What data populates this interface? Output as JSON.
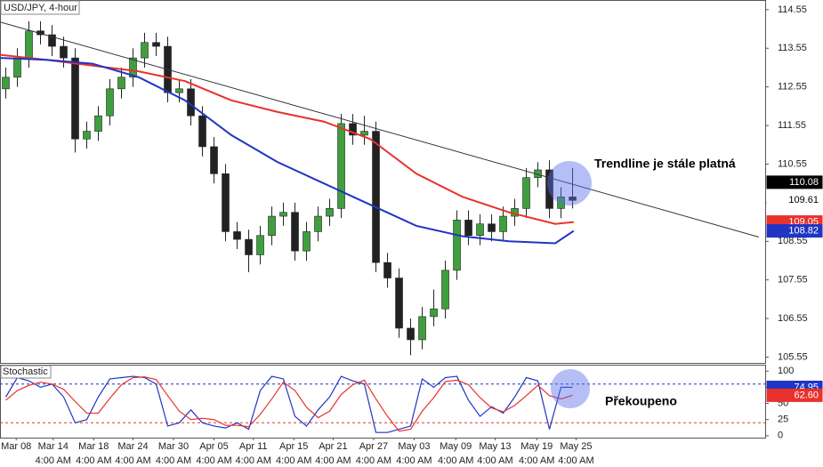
{
  "chart_data": [
    {
      "type": "candlestick",
      "title": "USD/JPY, 4-hour",
      "x": [
        0.5,
        1.5,
        2.5,
        3.5,
        4.5,
        5.5,
        6.5,
        7.5,
        8.5,
        9.5,
        10.5,
        11.5,
        12.5,
        13.5,
        14.5,
        15.5,
        16.5,
        17.5,
        18.5,
        19.5,
        20.5,
        21.5,
        22.5,
        23.5,
        24.5,
        25.5,
        26.5,
        27.5,
        28.5,
        29.5,
        30.5,
        31.5,
        32.5,
        33.5,
        34.5,
        35.5,
        36.5,
        37.5,
        38.5,
        39.5,
        40.5,
        41.5,
        42.5,
        43.5,
        44.5,
        45.5,
        46.5,
        47.5,
        48.5,
        49.5
      ],
      "open": [
        112.5,
        112.8,
        113.3,
        114.0,
        113.9,
        113.6,
        113.3,
        111.2,
        111.4,
        111.8,
        112.5,
        112.8,
        113.3,
        113.7,
        113.6,
        112.4,
        112.5,
        111.8,
        111.0,
        110.3,
        108.8,
        108.6,
        108.2,
        108.7,
        109.2,
        109.3,
        108.3,
        108.8,
        109.2,
        109.4,
        111.6,
        111.3,
        111.4,
        108.0,
        107.6,
        106.3,
        106.0,
        106.6,
        106.8,
        107.8,
        109.1,
        108.7,
        109.0,
        108.8,
        109.2,
        109.4,
        110.2,
        110.4,
        109.4,
        109.7
      ],
      "high": [
        113.05,
        113.55,
        114.25,
        114.25,
        114.15,
        113.85,
        113.55,
        111.65,
        112.05,
        112.75,
        113.05,
        113.55,
        113.95,
        113.95,
        113.85,
        112.75,
        112.75,
        112.05,
        111.25,
        110.55,
        109.05,
        108.85,
        108.95,
        109.45,
        109.55,
        109.55,
        109.05,
        109.45,
        109.65,
        111.85,
        111.85,
        111.8,
        111.65,
        108.25,
        107.85,
        106.55,
        106.85,
        107.3,
        108.05,
        109.35,
        109.35,
        109.25,
        109.25,
        109.45,
        109.65,
        110.45,
        110.6,
        110.65,
        109.95,
        110.45
      ],
      "low": [
        112.25,
        112.55,
        113.05,
        113.65,
        113.35,
        113.05,
        110.85,
        110.95,
        111.15,
        111.55,
        112.25,
        112.55,
        113.05,
        113.35,
        112.15,
        112.15,
        111.55,
        110.75,
        110.05,
        108.55,
        108.35,
        107.75,
        107.95,
        108.45,
        108.95,
        108.05,
        108.05,
        108.55,
        108.95,
        109.15,
        111.05,
        111.05,
        107.75,
        107.35,
        106.05,
        105.6,
        105.75,
        106.35,
        106.55,
        107.55,
        108.45,
        108.45,
        108.55,
        108.55,
        108.95,
        109.15,
        109.95,
        109.15,
        109.15,
        109.4
      ],
      "close": [
        112.8,
        113.3,
        114.0,
        113.9,
        113.6,
        113.3,
        111.2,
        111.4,
        111.8,
        112.5,
        112.8,
        113.3,
        113.7,
        113.6,
        112.4,
        112.5,
        111.8,
        111.0,
        110.3,
        108.8,
        108.6,
        108.2,
        108.7,
        109.2,
        109.3,
        108.3,
        108.8,
        109.2,
        109.4,
        111.6,
        111.3,
        111.4,
        108.0,
        107.6,
        106.3,
        106.0,
        106.6,
        106.8,
        107.8,
        109.1,
        108.7,
        109.0,
        108.8,
        109.2,
        109.4,
        110.2,
        110.4,
        109.4,
        109.7,
        109.61
      ],
      "up_color": "#3f9f3f",
      "down_color": "#222222",
      "series": [
        {
          "color": "#e8322b",
          "x": [
            0,
            4,
            8,
            12,
            16,
            20,
            24,
            28,
            32,
            36,
            40,
            44,
            48,
            49.6
          ],
          "values": [
            113.38,
            113.25,
            113.1,
            112.95,
            112.7,
            112.2,
            111.9,
            111.65,
            111.2,
            110.3,
            109.7,
            109.3,
            109.0,
            109.05
          ]
        },
        {
          "color": "#1f35c4",
          "x": [
            0,
            4,
            8,
            12,
            16,
            20,
            24,
            28,
            32,
            36,
            40,
            44,
            48,
            49.6
          ],
          "values": [
            113.3,
            113.25,
            113.15,
            112.8,
            112.2,
            111.3,
            110.6,
            110.05,
            109.5,
            108.95,
            108.68,
            108.55,
            108.5,
            108.82
          ]
        }
      ],
      "trendline": {
        "color": "#333333",
        "x": [
          0,
          65.6
        ],
        "values": [
          114.23,
          108.66
        ]
      },
      "annotation": "Trendline je stále platná",
      "price_labels": [
        {
          "value": 110.08,
          "color": "#000000"
        },
        {
          "value": 109.61,
          "color": "#ffffff"
        },
        {
          "value": 109.05,
          "color": "#e8322b"
        },
        {
          "value": 108.82,
          "color": "#1f35c4"
        }
      ],
      "xlim": [
        0,
        66.15
      ],
      "ylim": [
        105.4,
        114.8
      ],
      "yticks": [
        114.55,
        113.55,
        112.55,
        111.55,
        110.55,
        109.55,
        108.55,
        107.55,
        106.55,
        105.55
      ]
    },
    {
      "type": "line",
      "title": "Stochastic",
      "x": [
        0.5,
        1.5,
        2.5,
        3.5,
        4.5,
        5.5,
        6.5,
        7.5,
        8.5,
        9.5,
        10.5,
        11.5,
        12.5,
        13.5,
        14.5,
        15.5,
        16.5,
        17.5,
        18.5,
        19.5,
        20.5,
        21.5,
        22.5,
        23.5,
        24.5,
        25.5,
        26.5,
        27.5,
        28.5,
        29.5,
        30.5,
        31.5,
        32.5,
        33.5,
        34.5,
        35.5,
        36.5,
        37.5,
        38.5,
        39.5,
        40.5,
        41.5,
        42.5,
        43.5,
        44.5,
        45.5,
        46.5,
        47.5,
        48.5,
        49.5
      ],
      "series": [
        {
          "color": "#1f35c4",
          "values": [
            60,
            90,
            85,
            75,
            80,
            60,
            20,
            25,
            60,
            88,
            90,
            92,
            90,
            80,
            15,
            20,
            40,
            20,
            15,
            12,
            20,
            10,
            70,
            92,
            88,
            30,
            15,
            40,
            60,
            92,
            85,
            80,
            5,
            5,
            10,
            15,
            88,
            75,
            90,
            92,
            55,
            30,
            45,
            35,
            60,
            90,
            85,
            10,
            75,
            74.95
          ]
        },
        {
          "color": "#e8322b",
          "values": [
            55,
            70,
            78,
            83,
            80,
            72,
            53,
            35,
            35,
            58,
            79,
            90,
            91,
            87,
            62,
            38,
            25,
            27,
            25,
            16,
            16,
            14,
            33,
            57,
            83,
            70,
            44,
            28,
            38,
            64,
            79,
            86,
            57,
            30,
            7,
            10,
            38,
            59,
            84,
            86,
            79,
            59,
            43,
            37,
            47,
            62,
            78,
            62,
            57,
            62.6
          ]
        }
      ],
      "levels": [
        {
          "value": 80,
          "color": "#1f35c4"
        },
        {
          "value": 20,
          "color": "#e8322b"
        }
      ],
      "annotation": "Překoupeno",
      "price_labels": [
        {
          "value": 74.95,
          "color": "#1f35c4"
        },
        {
          "value": 62.6,
          "label": "62.60",
          "color": "#e8322b"
        }
      ],
      "xlim": [
        0,
        66.15
      ],
      "ylim": [
        -3,
        110
      ],
      "yticks": [
        100,
        75,
        50,
        25,
        0
      ],
      "xticks": [
        {
          "value": 1.4,
          "label": "Mar 08"
        },
        {
          "value": 4.6,
          "label": "Mar 14"
        },
        {
          "value": 8.1,
          "label": "Mar 18"
        },
        {
          "value": 11.5,
          "label": "Mar 24"
        },
        {
          "value": 15,
          "label": "Mar 30"
        },
        {
          "value": 18.5,
          "label": "Apr 05"
        },
        {
          "value": 21.9,
          "label": "Apr 11"
        },
        {
          "value": 25.4,
          "label": "Apr 15"
        },
        {
          "value": 28.8,
          "label": "Apr 21"
        },
        {
          "value": 32.3,
          "label": "Apr 27"
        },
        {
          "value": 35.8,
          "label": "May 03"
        },
        {
          "value": 39.4,
          "label": "May 09"
        },
        {
          "value": 42.8,
          "label": "May 13"
        },
        {
          "value": 46.4,
          "label": "May 19"
        },
        {
          "value": 49.8,
          "label": "May 25"
        }
      ],
      "xticks_time": [
        {
          "value": 4.6,
          "label": "4:00 AM"
        },
        {
          "value": 8.1,
          "label": "4:00 AM"
        },
        {
          "value": 11.5,
          "label": "4:00 AM"
        },
        {
          "value": 15,
          "label": "4:00 AM"
        },
        {
          "value": 18.5,
          "label": "4:00 AM"
        },
        {
          "value": 21.9,
          "label": "4:00 AM"
        },
        {
          "value": 25.4,
          "label": "4:00 AM"
        },
        {
          "value": 28.8,
          "label": "4:00 AM"
        },
        {
          "value": 32.3,
          "label": "4:00 AM"
        },
        {
          "value": 35.8,
          "label": "4:00 AM"
        },
        {
          "value": 39.4,
          "label": "4:00 AM"
        },
        {
          "value": 42.8,
          "label": "4:00 AM"
        },
        {
          "value": 46.4,
          "label": "4:00 AM"
        },
        {
          "value": 49.8,
          "label": "4:00 AM"
        }
      ]
    }
  ]
}
